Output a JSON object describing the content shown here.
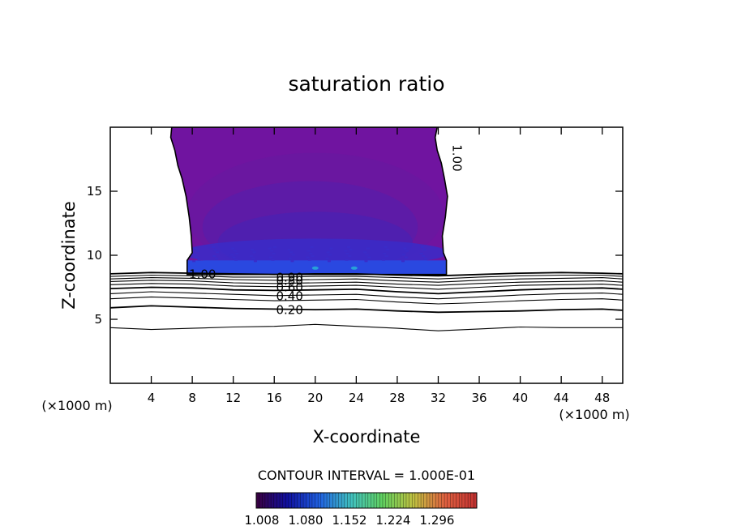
{
  "chart_data": {
    "type": "contour",
    "title": "saturation ratio",
    "xlabel": "X-coordinate",
    "ylabel": "Z-coordinate",
    "x_unit_left": "(×1000 m)",
    "x_unit_right": "(×1000 m)",
    "xlim": [
      0,
      50
    ],
    "ylim": [
      0,
      20
    ],
    "x_ticks": [
      4,
      8,
      12,
      16,
      20,
      24,
      28,
      32,
      36,
      40,
      44,
      48
    ],
    "x_tick_labels": [
      "4",
      "8",
      "12",
      "16",
      "20",
      "24",
      "28",
      "32",
      "36",
      "40",
      "44",
      "48"
    ],
    "y_ticks": [
      5,
      10,
      15
    ],
    "y_tick_labels": [
      "5",
      "10",
      "15"
    ],
    "contour_interval_text": "CONTOUR INTERVAL = 1.000E-01",
    "contour_levels": [
      {
        "value": 0.1,
        "label": "",
        "points": [
          [
            0,
            4.35
          ],
          [
            4,
            4.2
          ],
          [
            8,
            4.3
          ],
          [
            12,
            4.4
          ],
          [
            16,
            4.45
          ],
          [
            20,
            4.6
          ],
          [
            24,
            4.45
          ],
          [
            28,
            4.3
          ],
          [
            32,
            4.1
          ],
          [
            36,
            4.25
          ],
          [
            40,
            4.4
          ],
          [
            44,
            4.35
          ],
          [
            48,
            4.35
          ],
          [
            50,
            4.35
          ]
        ]
      },
      {
        "value": 0.2,
        "label": "0.20",
        "label_x": 17.5,
        "points": [
          [
            0,
            5.9
          ],
          [
            4,
            6.05
          ],
          [
            8,
            5.95
          ],
          [
            12,
            5.85
          ],
          [
            16,
            5.8
          ],
          [
            20,
            5.75
          ],
          [
            24,
            5.8
          ],
          [
            28,
            5.65
          ],
          [
            32,
            5.55
          ],
          [
            36,
            5.6
          ],
          [
            40,
            5.65
          ],
          [
            44,
            5.75
          ],
          [
            48,
            5.8
          ],
          [
            50,
            5.7
          ]
        ]
      },
      {
        "value": 0.3,
        "label": "",
        "points": [
          [
            0,
            6.6
          ],
          [
            4,
            6.75
          ],
          [
            8,
            6.65
          ],
          [
            12,
            6.55
          ],
          [
            16,
            6.45
          ],
          [
            20,
            6.5
          ],
          [
            24,
            6.55
          ],
          [
            28,
            6.35
          ],
          [
            32,
            6.2
          ],
          [
            36,
            6.3
          ],
          [
            40,
            6.45
          ],
          [
            44,
            6.55
          ],
          [
            48,
            6.6
          ],
          [
            50,
            6.5
          ]
        ]
      },
      {
        "value": 0.4,
        "label": "0.40",
        "label_x": 17.5,
        "points": [
          [
            0,
            7.0
          ],
          [
            4,
            7.15
          ],
          [
            8,
            7.05
          ],
          [
            12,
            6.95
          ],
          [
            16,
            6.85
          ],
          [
            20,
            6.9
          ],
          [
            24,
            6.95
          ],
          [
            28,
            6.75
          ],
          [
            32,
            6.6
          ],
          [
            36,
            6.75
          ],
          [
            40,
            6.9
          ],
          [
            44,
            7.0
          ],
          [
            48,
            7.05
          ],
          [
            50,
            6.95
          ]
        ]
      },
      {
        "value": 0.5,
        "label": "",
        "points": [
          [
            0,
            7.4
          ],
          [
            4,
            7.5
          ],
          [
            8,
            7.45
          ],
          [
            12,
            7.3
          ],
          [
            16,
            7.25
          ],
          [
            20,
            7.3
          ],
          [
            24,
            7.35
          ],
          [
            28,
            7.15
          ],
          [
            32,
            7.0
          ],
          [
            36,
            7.15
          ],
          [
            40,
            7.3
          ],
          [
            44,
            7.4
          ],
          [
            48,
            7.45
          ],
          [
            50,
            7.35
          ]
        ]
      },
      {
        "value": 0.6,
        "label": "0.60",
        "label_x": 17.5,
        "points": [
          [
            0,
            7.7
          ],
          [
            4,
            7.8
          ],
          [
            8,
            7.75
          ],
          [
            12,
            7.6
          ],
          [
            16,
            7.55
          ],
          [
            20,
            7.6
          ],
          [
            24,
            7.65
          ],
          [
            28,
            7.5
          ],
          [
            32,
            7.35
          ],
          [
            36,
            7.5
          ],
          [
            40,
            7.65
          ],
          [
            44,
            7.7
          ],
          [
            48,
            7.75
          ],
          [
            50,
            7.65
          ]
        ]
      },
      {
        "value": 0.7,
        "label": "",
        "points": [
          [
            0,
            7.95
          ],
          [
            4,
            8.05
          ],
          [
            8,
            8.0
          ],
          [
            12,
            7.85
          ],
          [
            16,
            7.8
          ],
          [
            20,
            7.85
          ],
          [
            24,
            7.9
          ],
          [
            28,
            7.75
          ],
          [
            32,
            7.65
          ],
          [
            36,
            7.8
          ],
          [
            40,
            7.9
          ],
          [
            44,
            7.95
          ],
          [
            48,
            8.0
          ],
          [
            50,
            7.9
          ]
        ]
      },
      {
        "value": 0.8,
        "label": "0.80",
        "label_x": 17.5,
        "points": [
          [
            0,
            8.15
          ],
          [
            4,
            8.25
          ],
          [
            8,
            8.2
          ],
          [
            12,
            8.1
          ],
          [
            16,
            8.05
          ],
          [
            20,
            8.1
          ],
          [
            24,
            8.15
          ],
          [
            28,
            8.0
          ],
          [
            32,
            7.9
          ],
          [
            36,
            8.05
          ],
          [
            40,
            8.15
          ],
          [
            44,
            8.2
          ],
          [
            48,
            8.25
          ],
          [
            50,
            8.15
          ]
        ]
      },
      {
        "value": 0.9,
        "label": "0.90",
        "label_x": 17.5,
        "points": [
          [
            0,
            8.35
          ],
          [
            4,
            8.45
          ],
          [
            8,
            8.4
          ],
          [
            12,
            8.3
          ],
          [
            16,
            8.3
          ],
          [
            20,
            8.35
          ],
          [
            24,
            8.35
          ],
          [
            28,
            8.25
          ],
          [
            32,
            8.15
          ],
          [
            36,
            8.3
          ],
          [
            40,
            8.4
          ],
          [
            44,
            8.45
          ],
          [
            48,
            8.45
          ],
          [
            50,
            8.35
          ]
        ]
      },
      {
        "value": 1.0,
        "label": "1.00",
        "label_x": 9.0,
        "points": [
          [
            0,
            8.55
          ],
          [
            4,
            8.65
          ],
          [
            8,
            8.6
          ],
          [
            12,
            8.55
          ],
          [
            16,
            8.5
          ],
          [
            20,
            8.55
          ],
          [
            24,
            8.55
          ],
          [
            28,
            8.45
          ],
          [
            32,
            8.4
          ],
          [
            36,
            8.5
          ],
          [
            40,
            8.6
          ],
          [
            44,
            8.65
          ],
          [
            48,
            8.6
          ],
          [
            50,
            8.55
          ]
        ]
      }
    ],
    "cloud_boundary_label": "1.00",
    "cloud_outline": [
      [
        6.0,
        20
      ],
      [
        5.9,
        19.2
      ],
      [
        6.3,
        18.2
      ],
      [
        6.6,
        17.0
      ],
      [
        7.0,
        16.0
      ],
      [
        7.4,
        14.6
      ],
      [
        7.7,
        13.0
      ],
      [
        7.9,
        11.5
      ],
      [
        8.0,
        10.2
      ],
      [
        7.5,
        9.6
      ],
      [
        7.5,
        8.5
      ],
      [
        32.8,
        8.5
      ],
      [
        32.8,
        9.6
      ],
      [
        32.5,
        10.2
      ],
      [
        32.4,
        11.5
      ],
      [
        32.7,
        13.0
      ],
      [
        32.9,
        14.6
      ],
      [
        32.6,
        16.0
      ],
      [
        32.3,
        17.2
      ],
      [
        31.9,
        18.2
      ],
      [
        31.7,
        19.2
      ],
      [
        31.9,
        20
      ]
    ],
    "filled_regions": [
      {
        "level": 1.008,
        "color": "#7014a0"
      },
      {
        "level": 1.02,
        "color": "#6818a0"
      },
      {
        "level": 1.03,
        "color": "#5a1ca8"
      },
      {
        "level": 1.04,
        "color": "#4c20b0"
      },
      {
        "level": 1.06,
        "color": "#3a2cc8"
      },
      {
        "level": 1.1,
        "color": "#2a48e0"
      },
      {
        "level": 1.13,
        "color": "#28a0d8"
      }
    ],
    "colorbar": {
      "ticks": [
        "1.008",
        "1.080",
        "1.152",
        "1.224",
        "1.296"
      ],
      "stops": [
        "#3a0040",
        "#1010a0",
        "#2060e0",
        "#40c0c0",
        "#60d060",
        "#c0c040",
        "#e06040",
        "#c03030"
      ]
    }
  }
}
